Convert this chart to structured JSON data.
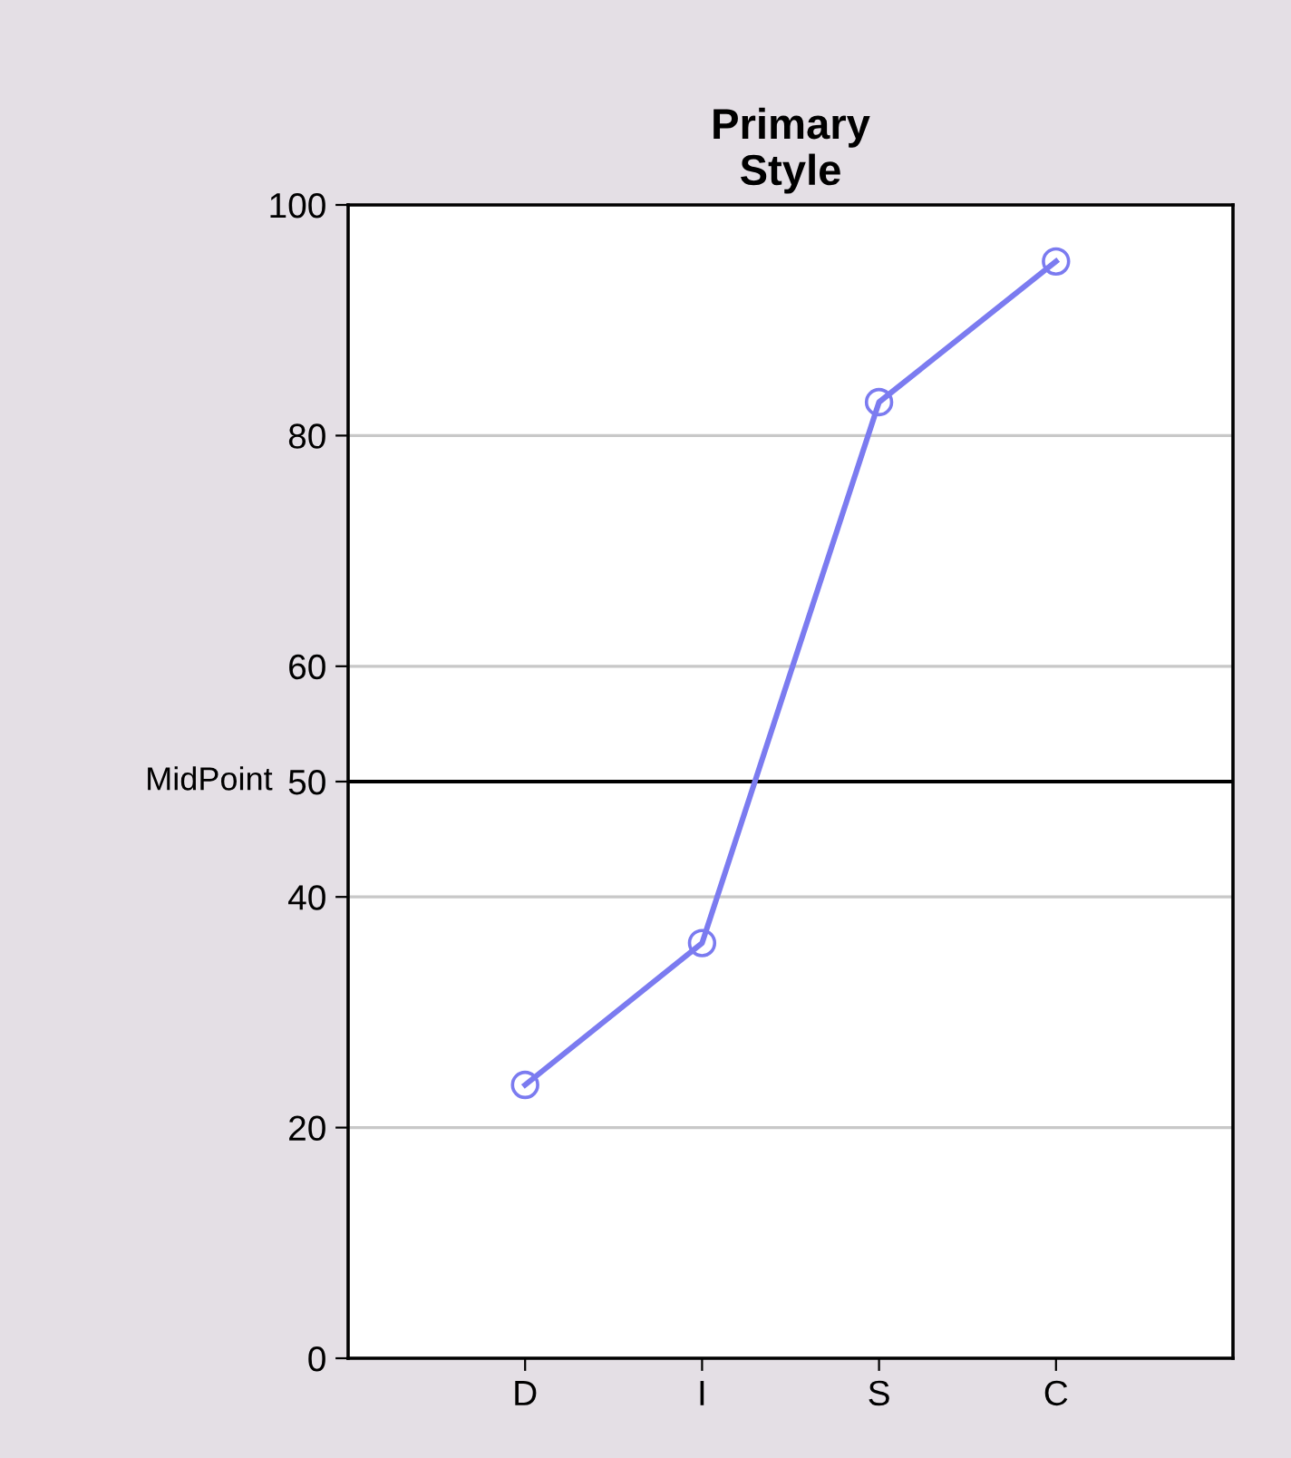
{
  "chart_data": {
    "type": "line",
    "title": "Primary\nStyle",
    "categories": [
      "D",
      "I",
      "S",
      "C"
    ],
    "series": [
      {
        "color": "#7b7bf0",
        "values": [
          23.7,
          36,
          82.9,
          95.1
        ]
      }
    ],
    "ylim": [
      0,
      100
    ],
    "yticks": [
      0,
      20,
      40,
      50,
      60,
      80,
      100
    ],
    "grid": "y",
    "marker": "circle",
    "line_style": "solid",
    "ref_lines": [
      {
        "axis": "y",
        "value": 50,
        "label": "MidPoint",
        "color": "#000000"
      }
    ]
  }
}
